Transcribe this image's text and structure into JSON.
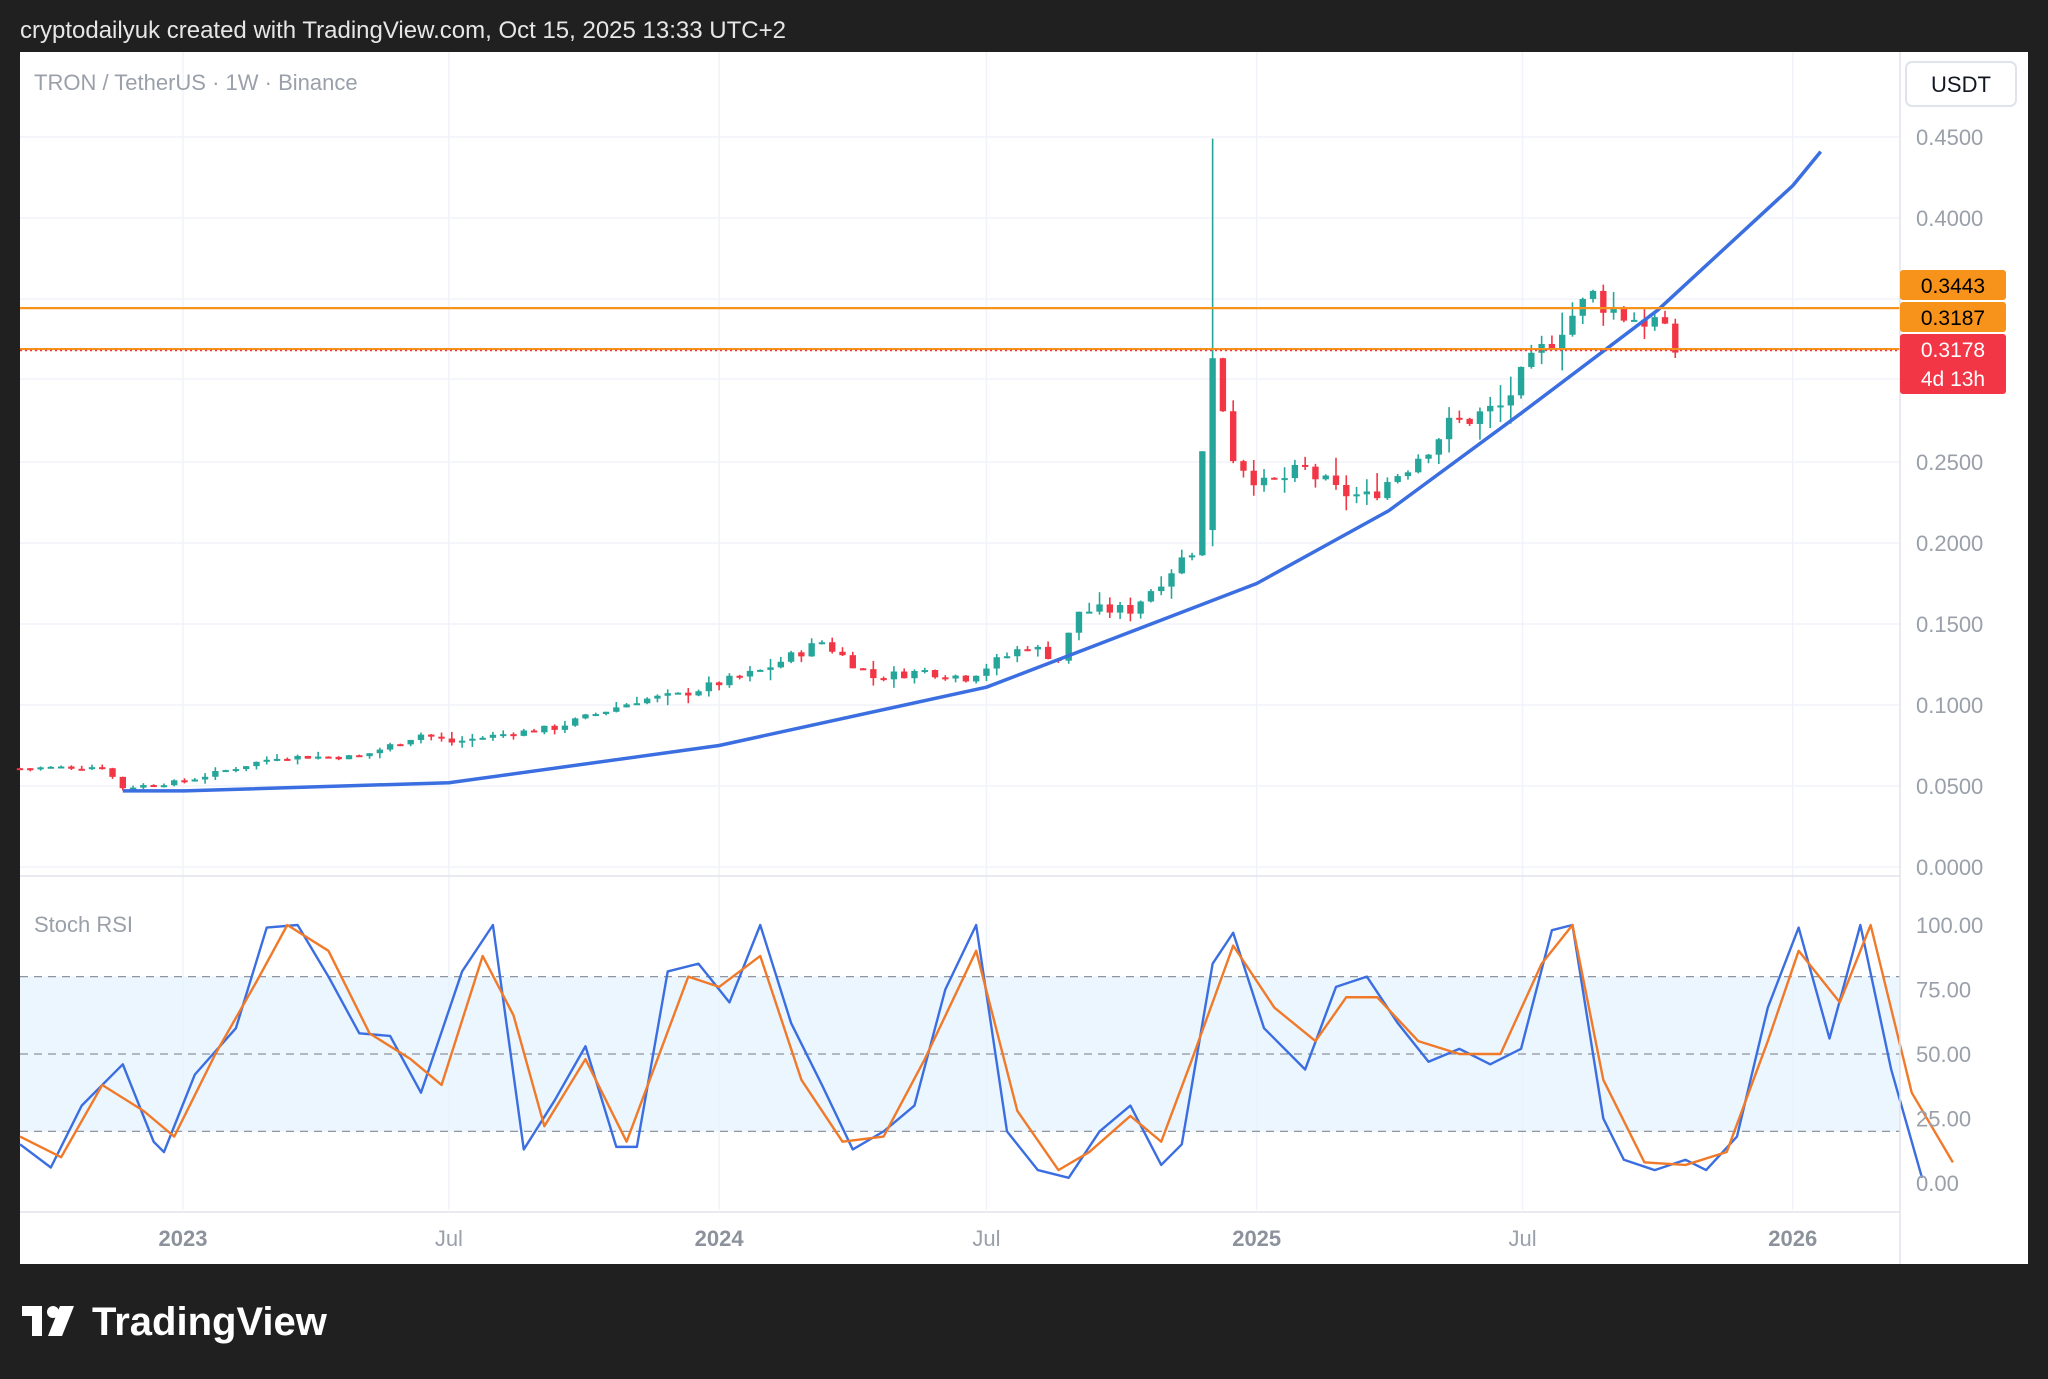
{
  "header": {
    "text": "cryptodailyuk created with TradingView.com, Oct 15, 2025 13:33 UTC+2"
  },
  "chart_title": "TRON / TetherUS · 1W · Binance",
  "currency_label": "USDT",
  "indicator_label": "Stoch RSI",
  "footer": {
    "logo_icon": "tradingview-logo-icon",
    "logo_text": "TradingView"
  },
  "colors": {
    "up": "#26a69a",
    "down": "#f23645",
    "trend": "#3b6ee0",
    "hline": "#f7931a",
    "stoch_k": "#3b6ee0",
    "stoch_d": "#f07a2a",
    "band_fill": "#e3f2fd",
    "price_tag_orange": "#f7931a",
    "price_tag_red": "#f23645"
  },
  "chart_data": [
    {
      "type": "candlestick",
      "timeframe": "1W",
      "x_range": [
        "2022-09-12",
        "2026-03-15"
      ],
      "ylim": [
        0.0,
        0.48
      ],
      "y_ticks": [
        "0.0000",
        "0.0500",
        "0.1000",
        "0.1500",
        "0.2000",
        "0.2500",
        "0.4000",
        "0.4500"
      ],
      "x_ticks": [
        {
          "date": "2023-01-01",
          "label": "2023",
          "bold": true
        },
        {
          "date": "2023-07-01",
          "label": "Jul",
          "bold": false
        },
        {
          "date": "2024-01-01",
          "label": "2024",
          "bold": true
        },
        {
          "date": "2024-07-01",
          "label": "Jul",
          "bold": false
        },
        {
          "date": "2025-01-01",
          "label": "2025",
          "bold": true
        },
        {
          "date": "2025-07-01",
          "label": "Jul",
          "bold": false
        },
        {
          "date": "2026-01-01",
          "label": "2026",
          "bold": true
        }
      ],
      "close_anchors": [
        [
          "2022-09-12",
          0.061
        ],
        [
          "2022-11-07",
          0.062
        ],
        [
          "2022-11-21",
          0.049
        ],
        [
          "2023-01-02",
          0.053
        ],
        [
          "2023-03-06",
          0.068
        ],
        [
          "2023-05-01",
          0.068
        ],
        [
          "2023-06-12",
          0.082
        ],
        [
          "2023-07-03",
          0.077
        ],
        [
          "2023-08-07",
          0.082
        ],
        [
          "2023-09-11",
          0.086
        ],
        [
          "2023-11-06",
          0.103
        ],
        [
          "2023-12-04",
          0.106
        ],
        [
          "2024-01-29",
          0.121
        ],
        [
          "2024-03-11",
          0.139
        ],
        [
          "2024-04-15",
          0.117
        ],
        [
          "2024-05-20",
          0.121
        ],
        [
          "2024-06-17",
          0.117
        ],
        [
          "2024-07-29",
          0.137
        ],
        [
          "2024-08-19",
          0.128
        ],
        [
          "2024-09-02",
          0.158
        ],
        [
          "2024-10-07",
          0.159
        ],
        [
          "2024-11-18",
          0.196
        ],
        [
          "2024-12-02",
          0.313
        ],
        [
          "2024-12-16",
          0.254
        ],
        [
          "2025-01-06",
          0.235
        ],
        [
          "2025-02-03",
          0.245
        ],
        [
          "2025-02-24",
          0.232
        ],
        [
          "2025-03-17",
          0.228
        ],
        [
          "2025-04-14",
          0.248
        ],
        [
          "2025-05-12",
          0.272
        ],
        [
          "2025-06-16",
          0.283
        ],
        [
          "2025-07-07",
          0.309
        ],
        [
          "2025-07-28",
          0.334
        ],
        [
          "2025-08-18",
          0.352
        ],
        [
          "2025-09-08",
          0.34
        ],
        [
          "2025-09-29",
          0.336
        ],
        [
          "2025-10-13",
          0.3178
        ]
      ],
      "notable_candles": [
        {
          "date": "2024-12-02",
          "open": 0.208,
          "high": 0.449,
          "low": 0.198,
          "close": 0.313
        }
      ],
      "trend_curve": [
        [
          "2022-11-21",
          0.047
        ],
        [
          "2023-01-02",
          0.047
        ],
        [
          "2023-07-01",
          0.052
        ],
        [
          "2024-01-01",
          0.075
        ],
        [
          "2024-07-01",
          0.111
        ],
        [
          "2025-01-01",
          0.175
        ],
        [
          "2025-04-01",
          0.22
        ],
        [
          "2025-07-01",
          0.28
        ],
        [
          "2025-10-01",
          0.343
        ],
        [
          "2026-01-01",
          0.42
        ],
        [
          "2026-01-20",
          0.441
        ]
      ],
      "horizontal_lines": [
        {
          "value": 0.3443,
          "color": "#f7931a"
        },
        {
          "value": 0.3187,
          "color": "#f7931a"
        }
      ],
      "price_tags": [
        {
          "value": 0.3443,
          "label": "0.3443",
          "color": "#f7931a",
          "text_color": "#000000"
        },
        {
          "value": 0.3187,
          "label": "0.3187",
          "color": "#f7931a",
          "text_color": "#000000"
        },
        {
          "value": 0.3178,
          "label": "0.3178",
          "sublabel": "4d 13h",
          "color": "#f23645",
          "text_color": "#ffffff"
        }
      ]
    },
    {
      "type": "line",
      "name": "Stoch RSI",
      "ylim": [
        0,
        100
      ],
      "y_ticks": [
        "0.00",
        "25.00",
        "50.00",
        "75.00",
        "100.00"
      ],
      "band": [
        20,
        80
      ],
      "series": [
        {
          "name": "K",
          "color": "#3b6ee0",
          "points": [
            [
              "2022-09-12",
              15
            ],
            [
              "2022-10-03",
              6
            ],
            [
              "2022-10-24",
              30
            ],
            [
              "2022-11-21",
              46
            ],
            [
              "2022-12-12",
              16
            ],
            [
              "2022-12-19",
              12
            ],
            [
              "2023-01-09",
              42
            ],
            [
              "2023-02-06",
              60
            ],
            [
              "2023-02-27",
              99
            ],
            [
              "2023-03-20",
              100
            ],
            [
              "2023-04-10",
              80
            ],
            [
              "2023-05-01",
              58
            ],
            [
              "2023-05-22",
              57
            ],
            [
              "2023-06-12",
              35
            ],
            [
              "2023-07-10",
              82
            ],
            [
              "2023-07-31",
              100
            ],
            [
              "2023-08-21",
              13
            ],
            [
              "2023-09-11",
              32
            ],
            [
              "2023-10-02",
              53
            ],
            [
              "2023-10-23",
              14
            ],
            [
              "2023-11-06",
              14
            ],
            [
              "2023-11-27",
              82
            ],
            [
              "2023-12-18",
              85
            ],
            [
              "2024-01-08",
              70
            ],
            [
              "2024-01-29",
              100
            ],
            [
              "2024-02-19",
              62
            ],
            [
              "2024-03-11",
              38
            ],
            [
              "2024-04-01",
              13
            ],
            [
              "2024-04-22",
              20
            ],
            [
              "2024-05-13",
              30
            ],
            [
              "2024-06-03",
              75
            ],
            [
              "2024-06-24",
              100
            ],
            [
              "2024-07-15",
              20
            ],
            [
              "2024-08-05",
              5
            ],
            [
              "2024-08-26",
              2
            ],
            [
              "2024-09-16",
              20
            ],
            [
              "2024-10-07",
              30
            ],
            [
              "2024-10-28",
              7
            ],
            [
              "2024-11-11",
              15
            ],
            [
              "2024-12-02",
              85
            ],
            [
              "2024-12-16",
              97
            ],
            [
              "2025-01-06",
              60
            ],
            [
              "2025-02-03",
              44
            ],
            [
              "2025-02-24",
              76
            ],
            [
              "2025-03-17",
              80
            ],
            [
              "2025-04-07",
              62
            ],
            [
              "2025-04-28",
              47
            ],
            [
              "2025-05-19",
              52
            ],
            [
              "2025-06-09",
              46
            ],
            [
              "2025-06-30",
              52
            ],
            [
              "2025-07-21",
              98
            ],
            [
              "2025-08-04",
              100
            ],
            [
              "2025-08-25",
              25
            ],
            [
              "2025-09-08",
              9
            ],
            [
              "2025-09-29",
              5
            ],
            [
              "2025-10-20",
              9
            ],
            [
              "2025-11-03",
              5
            ],
            [
              "2025-11-24",
              18
            ],
            [
              "2025-12-15",
              68
            ],
            [
              "2026-01-05",
              99
            ],
            [
              "2026-01-26",
              56
            ],
            [
              "2026-02-16",
              100
            ],
            [
              "2026-03-09",
              44
            ],
            [
              "2026-03-30",
              2
            ]
          ]
        },
        {
          "name": "D",
          "color": "#f07a2a",
          "points": [
            [
              "2022-09-12",
              18
            ],
            [
              "2022-10-10",
              10
            ],
            [
              "2022-11-07",
              38
            ],
            [
              "2022-12-05",
              28
            ],
            [
              "2022-12-26",
              18
            ],
            [
              "2023-01-23",
              50
            ],
            [
              "2023-02-20",
              78
            ],
            [
              "2023-03-13",
              100
            ],
            [
              "2023-04-10",
              90
            ],
            [
              "2023-05-08",
              58
            ],
            [
              "2023-06-05",
              48
            ],
            [
              "2023-06-26",
              38
            ],
            [
              "2023-07-24",
              88
            ],
            [
              "2023-08-14",
              65
            ],
            [
              "2023-09-04",
              22
            ],
            [
              "2023-10-02",
              48
            ],
            [
              "2023-10-30",
              16
            ],
            [
              "2023-11-20",
              48
            ],
            [
              "2023-12-11",
              80
            ],
            [
              "2024-01-01",
              76
            ],
            [
              "2024-01-29",
              88
            ],
            [
              "2024-02-26",
              40
            ],
            [
              "2024-03-25",
              16
            ],
            [
              "2024-04-22",
              18
            ],
            [
              "2024-05-20",
              48
            ],
            [
              "2024-06-24",
              90
            ],
            [
              "2024-07-22",
              28
            ],
            [
              "2024-08-19",
              5
            ],
            [
              "2024-09-09",
              12
            ],
            [
              "2024-10-07",
              26
            ],
            [
              "2024-10-28",
              16
            ],
            [
              "2024-11-18",
              48
            ],
            [
              "2024-12-16",
              92
            ],
            [
              "2025-01-13",
              68
            ],
            [
              "2025-02-10",
              55
            ],
            [
              "2025-03-03",
              72
            ],
            [
              "2025-03-24",
              72
            ],
            [
              "2025-04-21",
              55
            ],
            [
              "2025-05-19",
              50
            ],
            [
              "2025-06-16",
              50
            ],
            [
              "2025-07-14",
              85
            ],
            [
              "2025-08-04",
              100
            ],
            [
              "2025-08-25",
              40
            ],
            [
              "2025-09-22",
              8
            ],
            [
              "2025-10-20",
              7
            ],
            [
              "2025-11-17",
              12
            ],
            [
              "2025-12-15",
              55
            ],
            [
              "2026-01-05",
              90
            ],
            [
              "2026-02-02",
              70
            ],
            [
              "2026-02-23",
              100
            ],
            [
              "2026-03-23",
              35
            ],
            [
              "2026-04-20",
              8
            ]
          ]
        }
      ]
    }
  ]
}
